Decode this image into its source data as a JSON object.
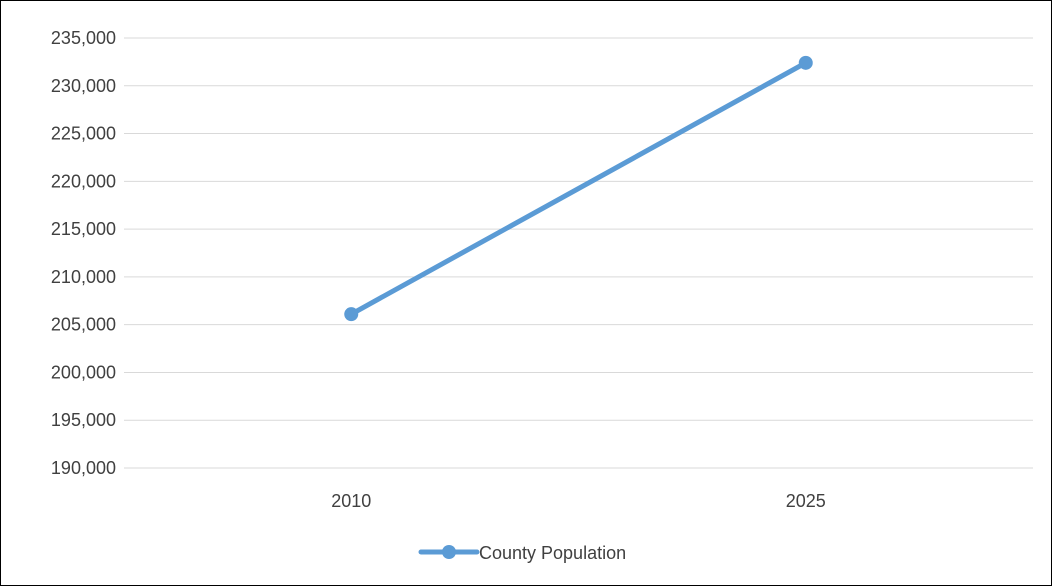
{
  "chart_data": {
    "type": "line",
    "title": "",
    "xlabel": "",
    "ylabel": "",
    "categories": [
      "2010",
      "2025"
    ],
    "series": [
      {
        "name": "County Population",
        "values": [
          206100,
          232400
        ],
        "color": "#5b9bd5"
      }
    ],
    "ylim": [
      190000,
      235000
    ],
    "y_ticks": [
      190000,
      195000,
      200000,
      205000,
      210000,
      215000,
      220000,
      225000,
      230000,
      235000
    ],
    "y_tick_labels": [
      "190,000",
      "195,000",
      "200,000",
      "205,000",
      "210,000",
      "215,000",
      "220,000",
      "225,000",
      "230,000",
      "235,000"
    ],
    "grid": true,
    "legend": "bottom",
    "colors": {
      "series": "#5b9bd5",
      "grid": "#d9d9d9",
      "text": "#404040"
    }
  }
}
